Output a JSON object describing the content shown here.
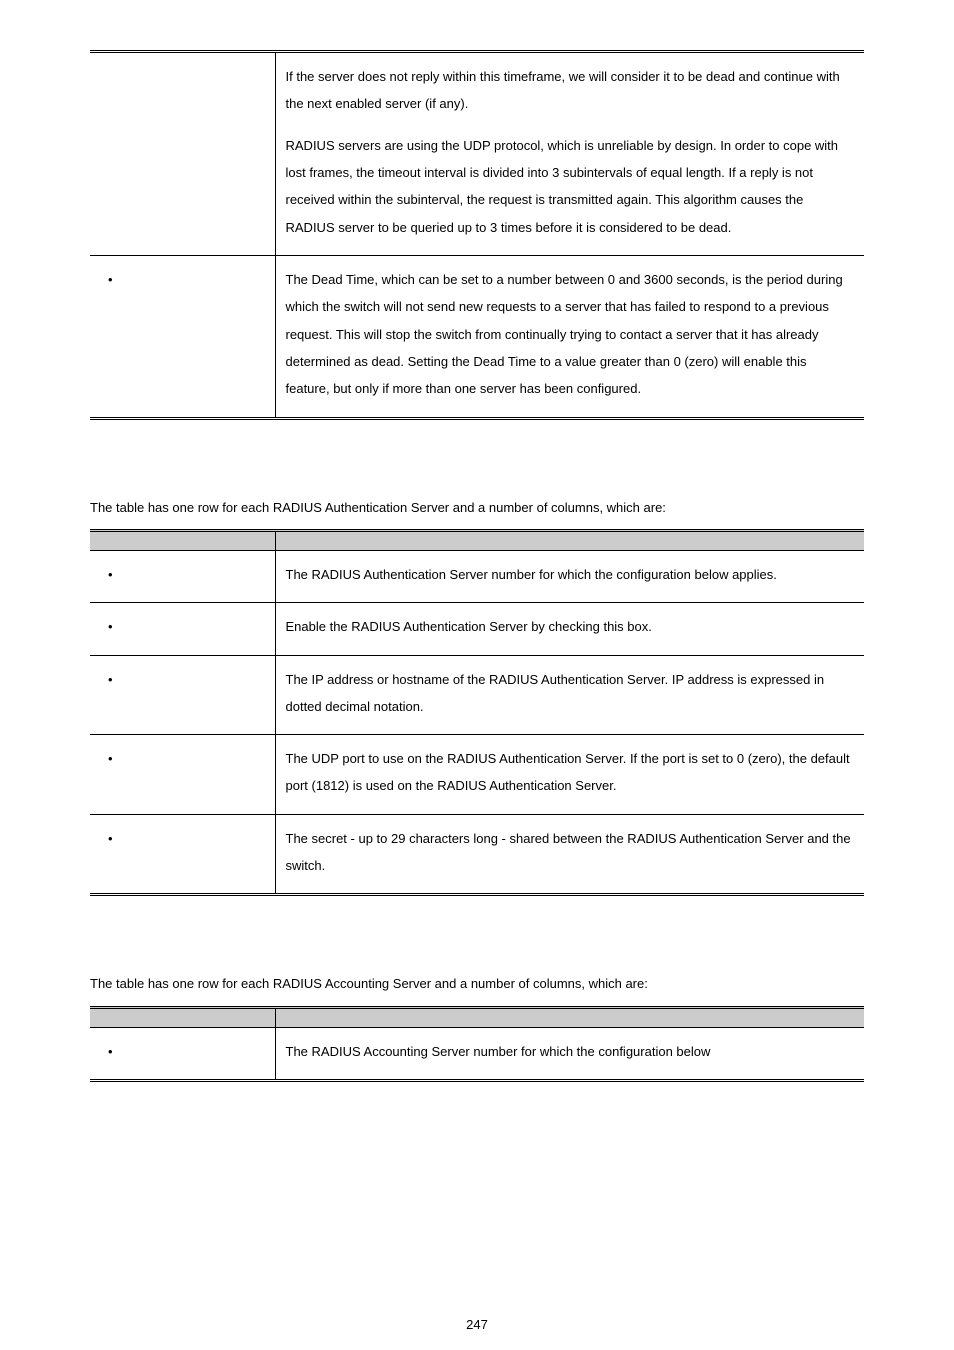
{
  "table1": {
    "row1": {
      "left": "",
      "right_p1": "If the server does not reply within this timeframe, we will consider it to be dead and continue with the next enabled server (if any).",
      "right_p2": "RADIUS servers are using the UDP protocol, which is unreliable by design. In order to cope with lost frames, the timeout interval is divided into 3 subintervals of equal length. If a reply is not received within the subinterval, the request is transmitted again. This algorithm causes the RADIUS server to be queried up to 3 times before it is considered to be dead."
    },
    "row2": {
      "left": "",
      "right": "The Dead Time, which can be set to a number between 0 and 3600 seconds, is the period during which the switch will not send new requests to a server that has failed to respond to a previous request. This will stop the switch from continually trying to contact a server that it has already determined as dead.\nSetting the Dead Time to a value greater than 0 (zero) will enable this feature, but only if more than one server has been configured."
    }
  },
  "intro2": "The table has one row for each RADIUS Authentication Server and a number of columns, which are:",
  "table2": {
    "header_left": "",
    "header_right": "",
    "rows": [
      {
        "left": "",
        "right": "The RADIUS Authentication Server number for which the configuration below applies."
      },
      {
        "left": "",
        "right": "Enable the RADIUS Authentication Server by checking this box."
      },
      {
        "left": "",
        "right": "The IP address or hostname of the RADIUS Authentication Server. IP address is expressed in dotted decimal notation."
      },
      {
        "left": "",
        "right": "The UDP port to use on the RADIUS Authentication Server. If the port is set to 0 (zero), the default port (1812) is used on the RADIUS Authentication Server."
      },
      {
        "left": "",
        "right": "The secret - up to 29 characters long - shared between the RADIUS Authentication Server and the switch."
      }
    ]
  },
  "intro3": "The table has one row for each RADIUS Accounting Server and a number of columns, which are:",
  "table3": {
    "header_left": "",
    "header_right": "",
    "row": {
      "left": "",
      "right": "The RADIUS Accounting Server number for which the configuration below"
    }
  },
  "page_number": "247",
  "colors": {
    "header_bg": "#cccccc",
    "text": "#000000",
    "bg": "#ffffff"
  }
}
